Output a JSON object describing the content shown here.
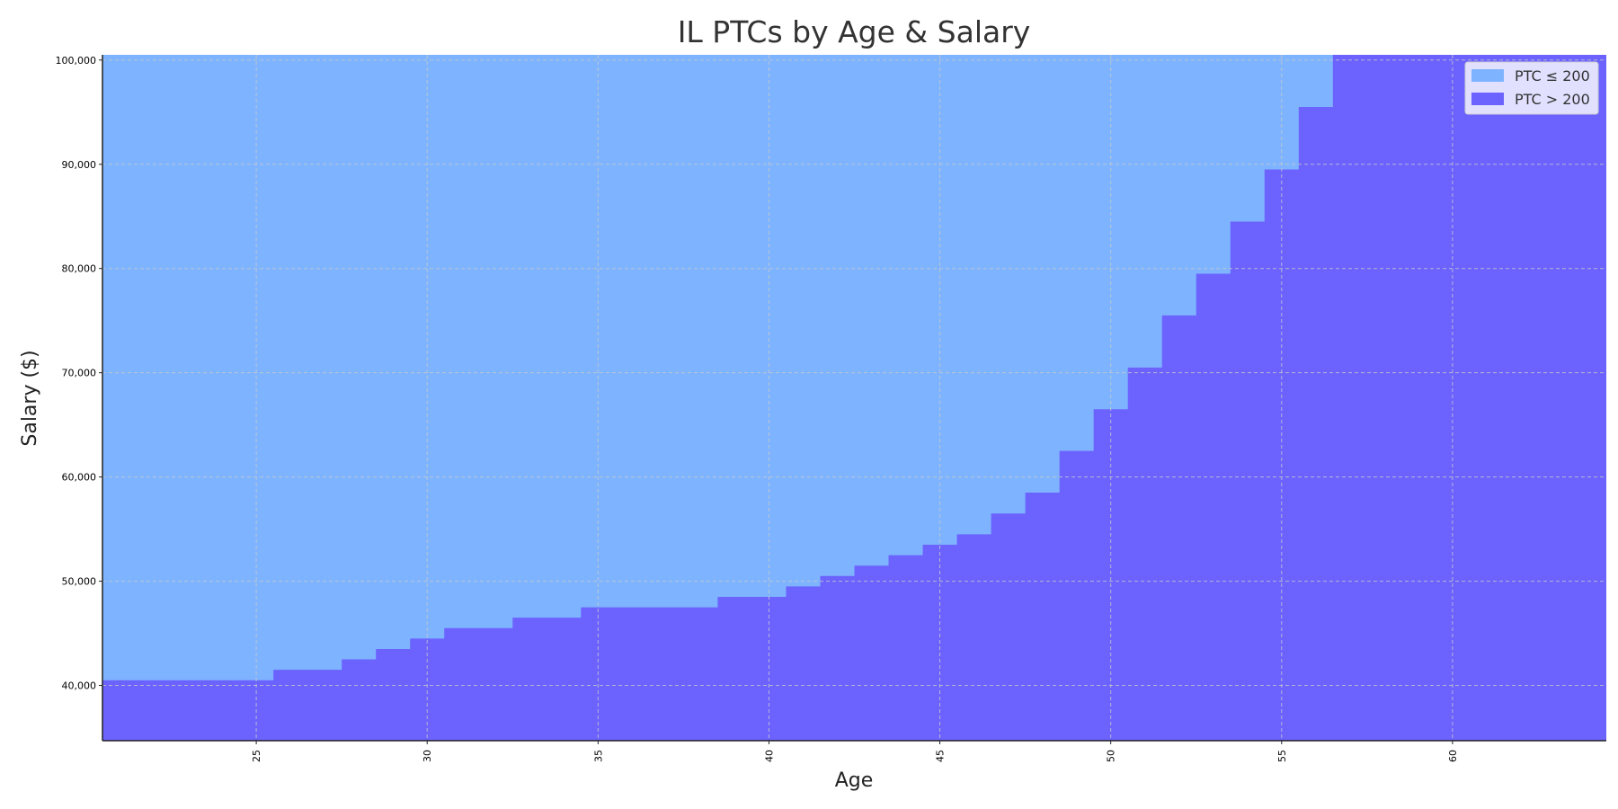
{
  "chart_data": {
    "type": "area",
    "title": "IL PTCs by Age & Salary",
    "xlabel": "Age",
    "ylabel": "Salary ($)",
    "xlim": [
      20.5,
      64.5
    ],
    "ylim": [
      34700,
      100500
    ],
    "x_ticks": [
      25,
      30,
      35,
      40,
      45,
      50,
      55,
      60
    ],
    "y_ticks": [
      40000,
      50000,
      60000,
      70000,
      80000,
      90000,
      100000
    ],
    "y_tick_labels": [
      "40,000",
      "50,000",
      "60,000",
      "70,000",
      "80,000",
      "90,000",
      "100,000"
    ],
    "grid": true,
    "legend_position": "top-right",
    "x": [
      21,
      22,
      23,
      24,
      25,
      26,
      27,
      28,
      29,
      30,
      31,
      32,
      33,
      34,
      35,
      36,
      37,
      38,
      39,
      40,
      41,
      42,
      43,
      44,
      45,
      46,
      47,
      48,
      49,
      50,
      51,
      52,
      53,
      54,
      55,
      56,
      57,
      58,
      59,
      60,
      61,
      62,
      63,
      64
    ],
    "threshold_salary": [
      40500,
      40500,
      40500,
      40500,
      40500,
      41500,
      41500,
      42500,
      43500,
      44500,
      45500,
      45500,
      46500,
      46500,
      47500,
      47500,
      47500,
      47500,
      48500,
      48500,
      49500,
      50500,
      51500,
      52500,
      53500,
      54500,
      56500,
      58500,
      62500,
      66500,
      70500,
      75500,
      79500,
      84500,
      89500,
      95500,
      100500,
      100500,
      100500,
      100500,
      100500,
      100500,
      100500,
      100500
    ],
    "series": [
      {
        "name": "PTC ≤ 200",
        "color": "#7eb4ff",
        "region": "above threshold"
      },
      {
        "name": "PTC > 200",
        "color": "#6c63ff",
        "region": "below threshold"
      }
    ]
  }
}
